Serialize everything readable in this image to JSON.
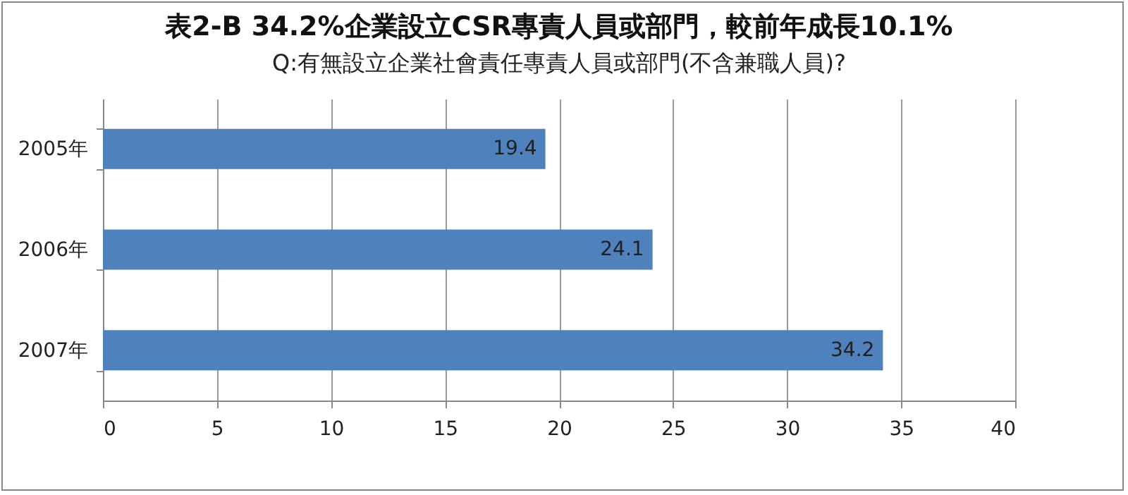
{
  "chart_data": {
    "type": "bar",
    "orientation": "horizontal",
    "title": "表2-B 34.2%企業設立CSR專責人員或部門，較前年成長10.1%",
    "subtitle": "Q:有無設立企業社會責任專責人員或部門(不含兼職人員)?",
    "categories": [
      "2005年",
      "2006年",
      "2007年"
    ],
    "values": [
      19.4,
      24.1,
      34.2
    ],
    "color": "#4f81bd",
    "xlim": [
      0,
      40
    ],
    "xticks": [
      0,
      5,
      10,
      15,
      20,
      25,
      30,
      35,
      40
    ],
    "grid": "x",
    "data_labels": true
  }
}
